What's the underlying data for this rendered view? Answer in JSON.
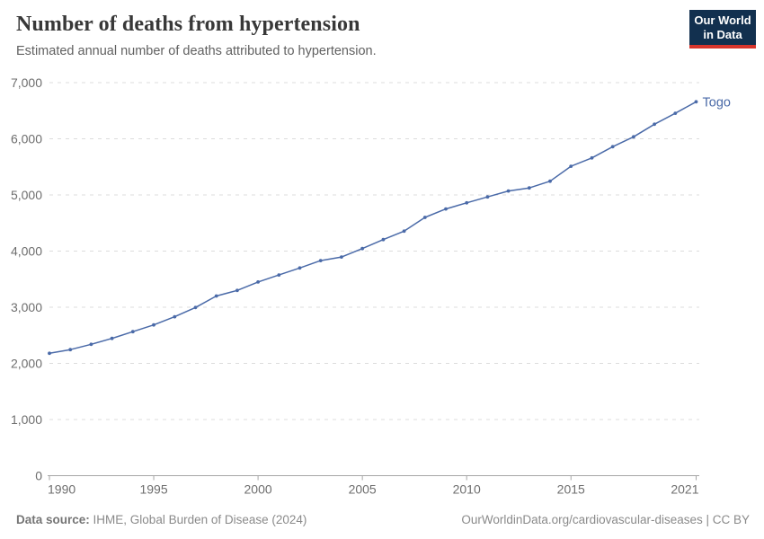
{
  "header": {
    "title": "Number of deaths from hypertension",
    "subtitle": "Estimated annual number of deaths attributed to hypertension.",
    "logo": {
      "line1": "Our World",
      "line2": "in Data",
      "bg_color": "#12304f",
      "accent_color": "#d7352c"
    }
  },
  "footer": {
    "source_label": "Data source:",
    "source_text": "IHME, Global Burden of Disease (2024)",
    "license_text": "OurWorldinData.org/cardiovascular-diseases | CC BY"
  },
  "chart_data": {
    "type": "line",
    "title": "Number of deaths from hypertension",
    "x": [
      1990,
      1991,
      1992,
      1993,
      1994,
      1995,
      1996,
      1997,
      1998,
      1999,
      2000,
      2001,
      2002,
      2003,
      2004,
      2005,
      2006,
      2007,
      2008,
      2009,
      2010,
      2011,
      2012,
      2013,
      2014,
      2015,
      2016,
      2017,
      2018,
      2019,
      2020,
      2021
    ],
    "series": [
      {
        "name": "Togo",
        "color": "#4a6aa8",
        "values": [
          2180,
          2245,
          2340,
          2445,
          2565,
          2685,
          2830,
          2995,
          3200,
          3300,
          3450,
          3575,
          3700,
          3830,
          3895,
          4045,
          4205,
          4355,
          4600,
          4750,
          4860,
          4965,
          5070,
          5125,
          5245,
          5510,
          5660,
          5860,
          6035,
          6260,
          6455,
          6660
        ]
      }
    ],
    "x_ticks": [
      1990,
      1995,
      2000,
      2005,
      2010,
      2015,
      2021
    ],
    "y_ticks": [
      0,
      1000,
      2000,
      3000,
      4000,
      5000,
      6000,
      7000
    ],
    "xlim": [
      1990,
      2021
    ],
    "ylim": [
      0,
      7000
    ],
    "grid": "horizontal-dashed",
    "legend": "end-of-line-label",
    "grid_color": "#dcdcdc",
    "axis_color": "#a6a6a6",
    "tick_label_color": "#6e6e6e"
  }
}
